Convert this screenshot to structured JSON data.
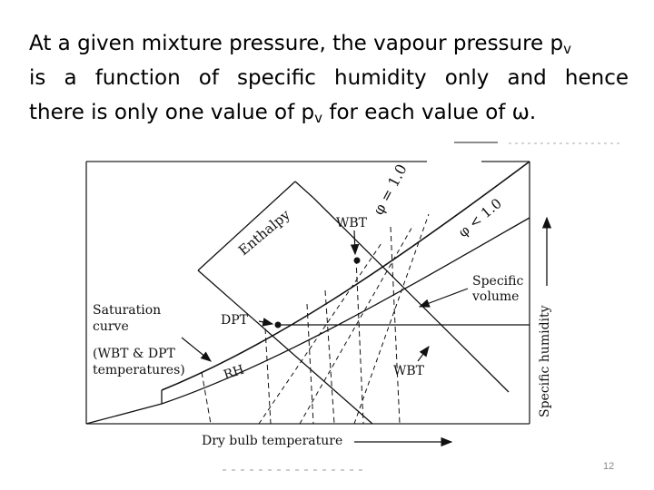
{
  "text": {
    "line1_main": "At a given mixture pressure, the vapour pressure p",
    "line1_sub": "v",
    "line2": "is a function of specific humidity only and hence",
    "line3_pre": "there is only one value of p",
    "line3_sub": "v",
    "line3_post": " for each value of ω."
  },
  "diagram": {
    "phi_equal": "φ = 1.0",
    "phi_less": "φ < 1.0",
    "enthalpy": "Enthalpy",
    "wbt_top": "WBT",
    "specific_volume_1": "Specific",
    "specific_volume_2": "volume",
    "saturation_1": "Saturation",
    "saturation_2": "curve",
    "dpt": "DPT",
    "wbt_dpt_1": "(WBT & DPT",
    "wbt_dpt_2": "temperatures)",
    "rh": "RH",
    "wbt_bottom": "WBT",
    "specific_humidity": "Specific humidity",
    "dry_bulb": "Dry bulb temperature"
  },
  "page_number": "12"
}
